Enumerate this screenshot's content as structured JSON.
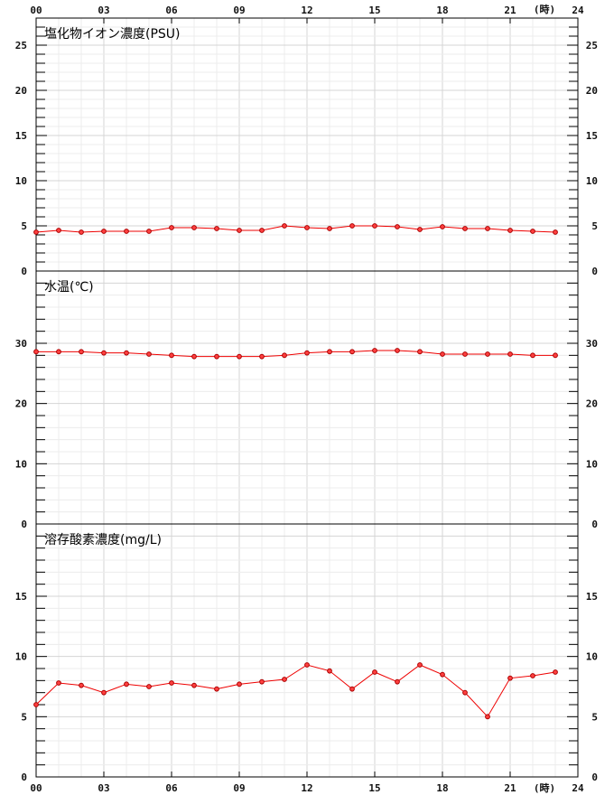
{
  "x_axis": {
    "tick_labels": [
      "00",
      "03",
      "06",
      "09",
      "12",
      "15",
      "18",
      "21",
      "24"
    ],
    "unit_label": "(時)"
  },
  "chart_data": [
    {
      "type": "line",
      "title": "塩化物イオン濃度(PSU)",
      "ylim": [
        0,
        28
      ],
      "y_ticks": [
        0,
        5,
        10,
        15,
        20,
        25
      ],
      "x": [
        0,
        1,
        2,
        3,
        4,
        5,
        6,
        7,
        8,
        9,
        10,
        11,
        12,
        13,
        14,
        15,
        16,
        17,
        18,
        19,
        20,
        21,
        22,
        23
      ],
      "values": [
        4.3,
        4.5,
        4.3,
        4.4,
        4.4,
        4.4,
        4.8,
        4.8,
        4.7,
        4.5,
        4.5,
        5.0,
        4.8,
        4.7,
        5.0,
        5.0,
        4.9,
        4.6,
        4.9,
        4.7,
        4.7,
        4.5,
        4.4,
        4.3
      ],
      "color": "#ee0000"
    },
    {
      "type": "line",
      "title": "水温(℃)",
      "ylim": [
        0,
        42
      ],
      "y_ticks": [
        0,
        10,
        20,
        30
      ],
      "x": [
        0,
        1,
        2,
        3,
        4,
        5,
        6,
        7,
        8,
        9,
        10,
        11,
        12,
        13,
        14,
        15,
        16,
        17,
        18,
        19,
        20,
        21,
        22,
        23
      ],
      "values": [
        28.6,
        28.6,
        28.6,
        28.4,
        28.4,
        28.2,
        28.0,
        27.8,
        27.8,
        27.8,
        27.8,
        28.0,
        28.4,
        28.6,
        28.6,
        28.8,
        28.8,
        28.6,
        28.2,
        28.2,
        28.2,
        28.2,
        28.0,
        28.0
      ],
      "color": "#ee0000"
    },
    {
      "type": "line",
      "title": "溶存酸素濃度(mg/L)",
      "ylim": [
        0,
        21
      ],
      "y_ticks": [
        0,
        5,
        10,
        15
      ],
      "x": [
        0,
        1,
        2,
        3,
        4,
        5,
        6,
        7,
        8,
        9,
        10,
        11,
        12,
        13,
        14,
        15,
        16,
        17,
        18,
        19,
        20,
        21,
        22,
        23
      ],
      "values": [
        6.0,
        7.8,
        7.6,
        7.0,
        7.7,
        7.5,
        7.8,
        7.6,
        7.3,
        7.7,
        7.9,
        8.1,
        9.3,
        8.8,
        7.3,
        8.7,
        7.9,
        9.3,
        8.5,
        7.0,
        5.0,
        8.2,
        8.4,
        8.7
      ],
      "color": "#ee0000"
    }
  ]
}
